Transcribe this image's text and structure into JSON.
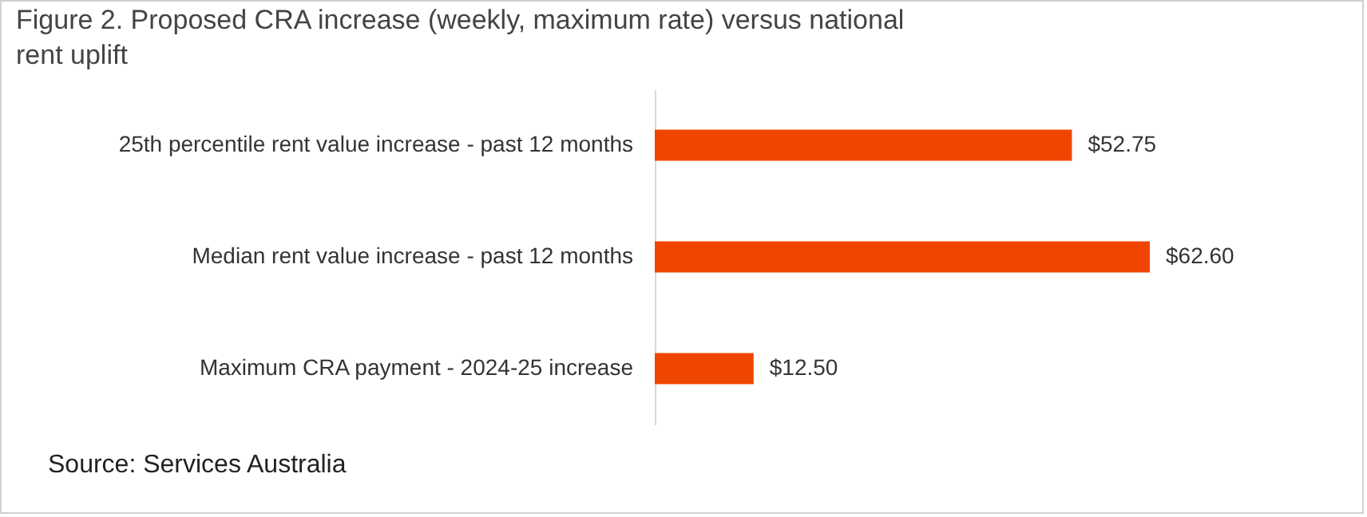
{
  "chart_data": {
    "type": "bar",
    "orientation": "horizontal",
    "title": "Figure 2. Proposed CRA increase (weekly, maximum rate) versus national rent uplift",
    "categories": [
      "25th percentile rent value increase - past 12 months",
      "Median rent value increase - past 12 months",
      "Maximum CRA payment - 2024-25 increase"
    ],
    "values": [
      52.75,
      62.6,
      12.5
    ],
    "value_labels": [
      "$52.75",
      "$62.60",
      "$12.50"
    ],
    "color": "#f04500",
    "annotations": [
      "Source: Services Australia"
    ]
  }
}
